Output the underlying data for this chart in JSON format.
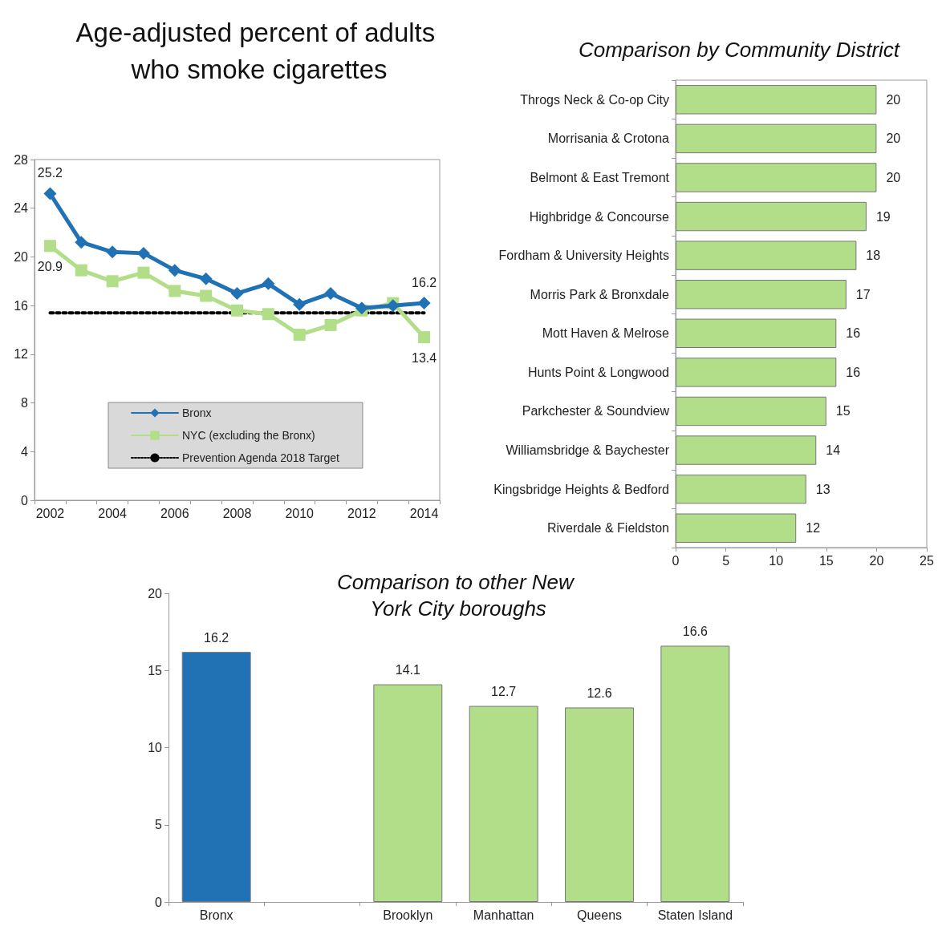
{
  "chart_data": [
    {
      "type": "line",
      "title": "Age-adjusted percent of adults who smoke cigarettes",
      "categories": [
        "2002",
        null,
        "2004",
        null,
        "2006",
        null,
        "2008",
        null,
        "2010",
        null,
        "2012",
        null,
        "2014"
      ],
      "series": [
        {
          "name": "Bronx",
          "color": "#2072b4",
          "marker": "diamond",
          "values": [
            25.2,
            21.2,
            20.4,
            20.3,
            18.9,
            18.2,
            17.0,
            17.8,
            16.1,
            17.0,
            15.8,
            16.0,
            16.2
          ],
          "value_labels": [
            "25.2",
            null,
            null,
            null,
            null,
            null,
            null,
            null,
            null,
            null,
            null,
            null,
            "16.2"
          ]
        },
        {
          "name": "NYC (excluding the Bronx)",
          "color": "#b2de89",
          "marker": "square",
          "values": [
            20.9,
            18.9,
            18.0,
            18.7,
            17.2,
            16.8,
            15.6,
            15.3,
            13.6,
            14.4,
            15.6,
            16.2,
            13.4
          ],
          "value_labels": [
            "20.9",
            null,
            null,
            null,
            null,
            null,
            null,
            null,
            null,
            null,
            null,
            null,
            "13.4"
          ]
        },
        {
          "name": "Prevention Agenda 2018 Target",
          "color": "#000000",
          "marker": "none",
          "line_style": "dotted",
          "values": [
            15.4,
            15.4,
            15.4,
            15.4,
            15.4,
            15.4,
            15.4,
            15.4,
            15.4,
            15.4,
            15.4,
            15.4,
            15.4
          ]
        }
      ],
      "ylim": [
        0,
        28
      ],
      "yticks": [
        0,
        4,
        8,
        12,
        16,
        20,
        24,
        28
      ],
      "grid": false,
      "legend": "bottom"
    },
    {
      "type": "bar",
      "orientation": "horizontal",
      "title": "Comparison by Community District",
      "categories": [
        "Throgs Neck & Co-op City",
        "Morrisania & Crotona",
        "Belmont & East Tremont",
        "Highbridge & Concourse",
        "Fordham & University Heights",
        "Morris Park & Bronxdale",
        "Mott Haven & Melrose",
        "Hunts Point & Longwood",
        "Parkchester & Soundview",
        "Williamsbridge & Baychester",
        "Kingsbridge Heights & Bedford",
        "Riverdale & Fieldston"
      ],
      "values": [
        20,
        20,
        20,
        19,
        18,
        17,
        16,
        16,
        15,
        14,
        13,
        12
      ],
      "color": "#b2de89",
      "xlim": [
        0,
        25
      ],
      "xticks": [
        0,
        5,
        10,
        15,
        20,
        25
      ],
      "data_labels": true,
      "grid": false
    },
    {
      "type": "bar",
      "title": "Comparison to other New York City boroughs",
      "categories": [
        "Bronx",
        null,
        "Brooklyn",
        "Manhattan",
        "Queens",
        "Staten Island"
      ],
      "values": [
        16.2,
        null,
        14.1,
        12.7,
        12.6,
        16.6
      ],
      "colors": [
        "#2072b4",
        null,
        "#b2de89",
        "#b2de89",
        "#b2de89",
        "#b2de89"
      ],
      "ylim": [
        0,
        20
      ],
      "yticks": [
        0,
        5,
        10,
        15,
        20
      ],
      "data_labels": true,
      "grid": false
    }
  ]
}
